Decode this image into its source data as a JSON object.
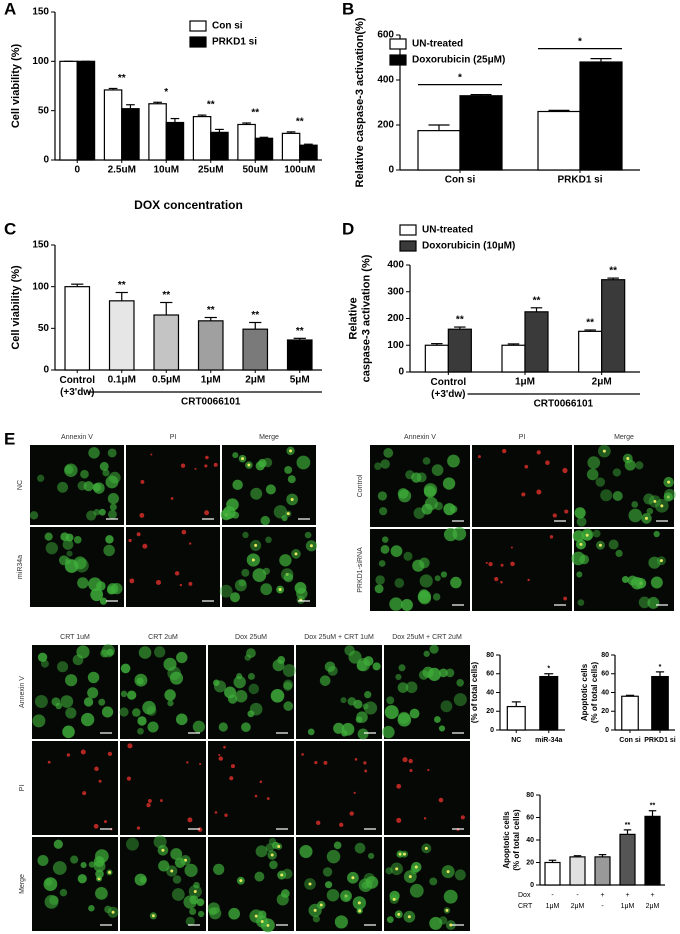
{
  "chart_data": [
    {
      "type": "bar",
      "panel": "A",
      "ylabel": "Cell viability (%)",
      "xlabel": "DOX concentration",
      "categories": [
        "0",
        "2.5uM",
        "10uM",
        "25uM",
        "50uM",
        "100uM"
      ],
      "series": [
        {
          "name": "Con si",
          "color": "#ffffff",
          "values": [
            100,
            71,
            57,
            44,
            36,
            27
          ],
          "errors": [
            0,
            1.5,
            1.5,
            1.5,
            1.5,
            1.5
          ]
        },
        {
          "name": "PRKD1 si",
          "color": "#000000",
          "values": [
            100,
            52,
            38,
            28,
            22,
            15
          ],
          "errors": [
            0,
            4,
            4,
            3,
            1,
            1
          ]
        }
      ],
      "annotations": [
        null,
        "**",
        "*",
        "**",
        "**",
        "**"
      ],
      "ylim": [
        0,
        150
      ],
      "yticks": [
        0,
        50,
        100,
        150
      ]
    },
    {
      "type": "bar",
      "panel": "B",
      "ylabel": "Relative caspase-3 activation(%)",
      "categories": [
        "Con si",
        "PRKD1 si"
      ],
      "series": [
        {
          "name": "UN-treated",
          "color": "#ffffff",
          "values": [
            175,
            260
          ],
          "errors": [
            25,
            5
          ]
        },
        {
          "name": "Doxorubicin (25μM)",
          "color": "#000000",
          "values": [
            330,
            480
          ],
          "errors": [
            5,
            15
          ]
        }
      ],
      "comparisons": [
        "*",
        "*"
      ],
      "ylim": [
        0,
        600
      ],
      "yticks": [
        0,
        200,
        400,
        600
      ]
    },
    {
      "type": "bar",
      "panel": "C",
      "ylabel": "Cell viability (%)",
      "categories": [
        "Control\n(+3'dw)",
        "0.1μM",
        "0.5μM",
        "1μM",
        "2μM",
        "5μM"
      ],
      "series": [
        {
          "colors": [
            "#ffffff",
            "#e6e6e6",
            "#c4c4c4",
            "#a0a0a0",
            "#7a7a7a",
            "#000000"
          ],
          "values": [
            100,
            83,
            66,
            59,
            49,
            36
          ],
          "errors": [
            3,
            10,
            15,
            4,
            8,
            2
          ],
          "annotations": [
            null,
            "**",
            "**",
            "**",
            "**",
            "**"
          ]
        }
      ],
      "group_label": "CRT0066101",
      "ylim": [
        0,
        150
      ],
      "yticks": [
        0,
        50,
        100,
        150
      ]
    },
    {
      "type": "bar",
      "panel": "D",
      "ylabel": "Relative\ncaspase-3 activation (%)",
      "categories": [
        "Control\n(+3'dw)",
        "1μM",
        "2μM"
      ],
      "series": [
        {
          "name": "UN-treated",
          "color": "#ffffff",
          "values": [
            100,
            100,
            152
          ],
          "errors": [
            6,
            5,
            5
          ],
          "annotations": [
            null,
            null,
            "**"
          ]
        },
        {
          "name": "Doxorubicin (10μM)",
          "color": "#3a3a3a",
          "values": [
            160,
            225,
            345
          ],
          "errors": [
            8,
            15,
            6
          ],
          "annotations": [
            "**",
            "**",
            "**"
          ]
        }
      ],
      "group_label": "CRT0066101",
      "ylim": [
        0,
        400
      ],
      "yticks": [
        0,
        100,
        200,
        300,
        400
      ]
    },
    {
      "type": "bar",
      "ylabel": "Apoptotic cells\n(% of total cells)",
      "categories": [
        "NC",
        "miR-34a"
      ],
      "series": [
        {
          "colors": [
            "#ffffff",
            "#000000"
          ],
          "values": [
            25,
            57
          ],
          "errors": [
            5,
            3
          ],
          "annotations": [
            null,
            "*"
          ]
        }
      ],
      "ylim": [
        0,
        80
      ],
      "yticks": [
        0,
        20,
        40,
        60,
        80
      ]
    },
    {
      "type": "bar",
      "ylabel": "Apoptotic cells\n(% of total cells)",
      "categories": [
        "Con si",
        "PRKD1 si"
      ],
      "series": [
        {
          "colors": [
            "#ffffff",
            "#000000"
          ],
          "values": [
            36,
            57
          ],
          "errors": [
            1,
            5
          ],
          "annotations": [
            null,
            "*"
          ]
        }
      ],
      "ylim": [
        0,
        80
      ],
      "yticks": [
        0,
        20,
        40,
        60,
        80
      ]
    },
    {
      "type": "bar",
      "ylabel": "Apoptotic cells\n(% of total cells)",
      "row_labels": [
        "Dox",
        "CRT"
      ],
      "rows": [
        [
          "-",
          "-",
          "+",
          "+",
          "+"
        ],
        [
          "1μM",
          "2μM",
          "-",
          "1μM",
          "2μM"
        ]
      ],
      "series": [
        {
          "colors": [
            "#ffffff",
            "#e0e0e0",
            "#999999",
            "#555555",
            "#000000"
          ],
          "values": [
            20,
            25,
            25,
            45,
            61
          ],
          "errors": [
            2,
            1,
            2,
            4,
            5
          ],
          "annotations": [
            null,
            null,
            null,
            "**",
            "**"
          ]
        }
      ],
      "ylim": [
        0,
        80
      ],
      "yticks": [
        0,
        20,
        40,
        60,
        80
      ]
    }
  ],
  "micrographs": {
    "panel": "E",
    "grids": [
      {
        "columns": [
          "Annexin V",
          "PI",
          "Merge"
        ],
        "rows": [
          "NC",
          "miR34a"
        ]
      },
      {
        "columns": [
          "Annexin V",
          "PI",
          "Merge"
        ],
        "rows": [
          "Control",
          "PRKD1-siRNA"
        ]
      },
      {
        "columns": [
          "CRT 1uM",
          "CRT 2uM",
          "Dox 25uM",
          "Dox 25uM + CRT 1uM",
          "Dox 25uM + CRT 2uM"
        ],
        "rows": [
          "Annexin V",
          "PI",
          "Merge"
        ]
      }
    ]
  }
}
